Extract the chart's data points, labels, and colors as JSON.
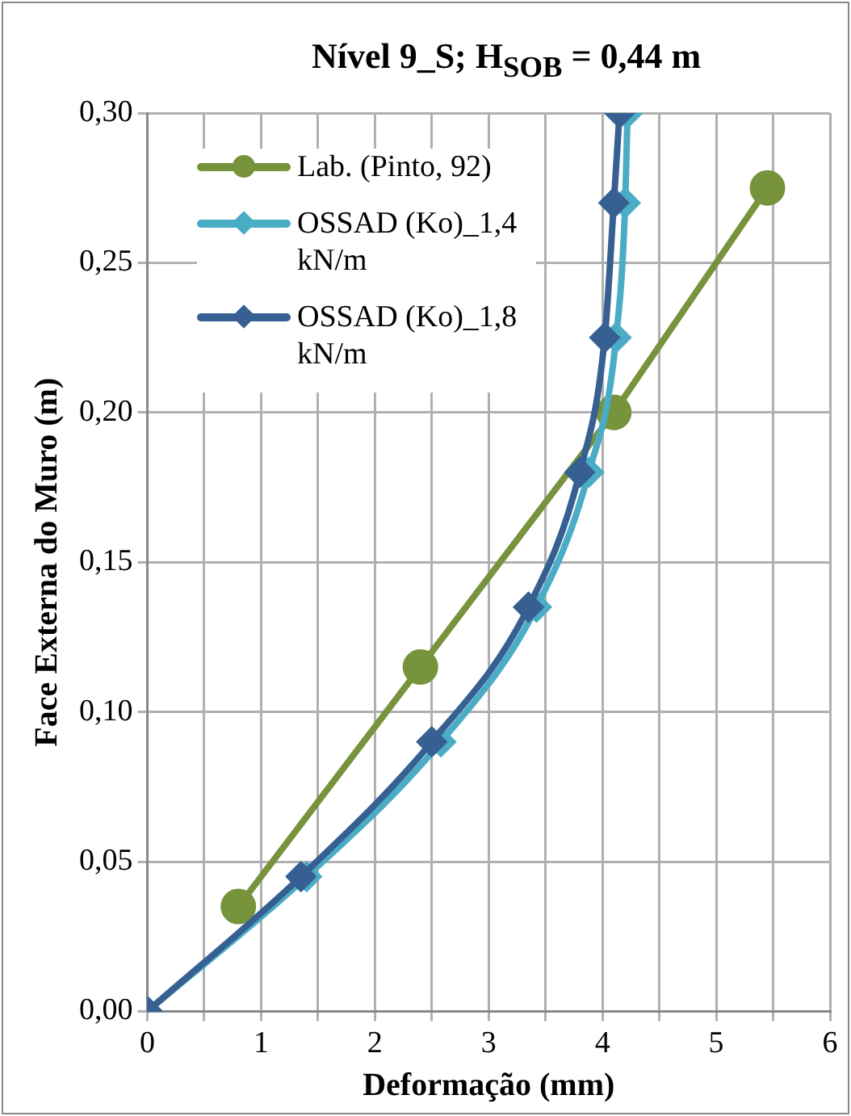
{
  "chart_data": {
    "type": "line",
    "title": "Nível 9_S; H$_{SOB}$ = 0,44 m",
    "xlabel": "Deformação (mm)",
    "ylabel": "Face Externa do Muro (m)",
    "xlim": [
      0,
      6
    ],
    "xticks": [
      0,
      {
        "value": 0.5,
        "label": null
      },
      1,
      {
        "value": 1.5,
        "label": null
      },
      2,
      {
        "value": 2.5,
        "label": null
      },
      3,
      {
        "value": 3.5,
        "label": null
      },
      4,
      {
        "value": 4.5,
        "label": null
      },
      5,
      {
        "value": 5.5,
        "label": null
      },
      6
    ],
    "ylim": [
      0,
      0.3
    ],
    "yticks": [
      {
        "value": 0,
        "label": "0,00"
      },
      {
        "value": 0.05,
        "label": "0,05"
      },
      {
        "value": 0.1,
        "label": "0,10"
      },
      {
        "value": 0.15,
        "label": "0,15"
      },
      {
        "value": 0.2,
        "label": "0,20"
      },
      {
        "value": 0.25,
        "label": "0,25"
      },
      {
        "value": 0.3,
        "label": "0,30"
      }
    ],
    "grid": true,
    "legend": "top left",
    "series": [
      {
        "name": "Lab. (Pinto, 92)",
        "color": "#77933c",
        "marker": "circle",
        "x": [
          0.8,
          2.4,
          4.1,
          5.45
        ],
        "values": [
          0.035,
          0.115,
          0.2,
          0.275
        ]
      },
      {
        "name": "OSSAD (Ko)_1,4 kN/m",
        "color": "#4bacc6",
        "marker": "diamond",
        "x": [
          0,
          1.4,
          2.58,
          3.42,
          3.88,
          4.12,
          4.2,
          4.22
        ],
        "values": [
          0,
          0.045,
          0.09,
          0.135,
          0.18,
          0.225,
          0.27,
          0.3
        ]
      },
      {
        "name": "OSSAD (Ko)_1,8 kN/m",
        "color": "#376092",
        "marker": "diamond",
        "x": [
          0,
          1.35,
          2.5,
          3.35,
          3.8,
          4.02,
          4.1,
          4.15
        ],
        "values": [
          0,
          0.045,
          0.09,
          0.135,
          0.18,
          0.225,
          0.27,
          0.3
        ]
      }
    ]
  }
}
